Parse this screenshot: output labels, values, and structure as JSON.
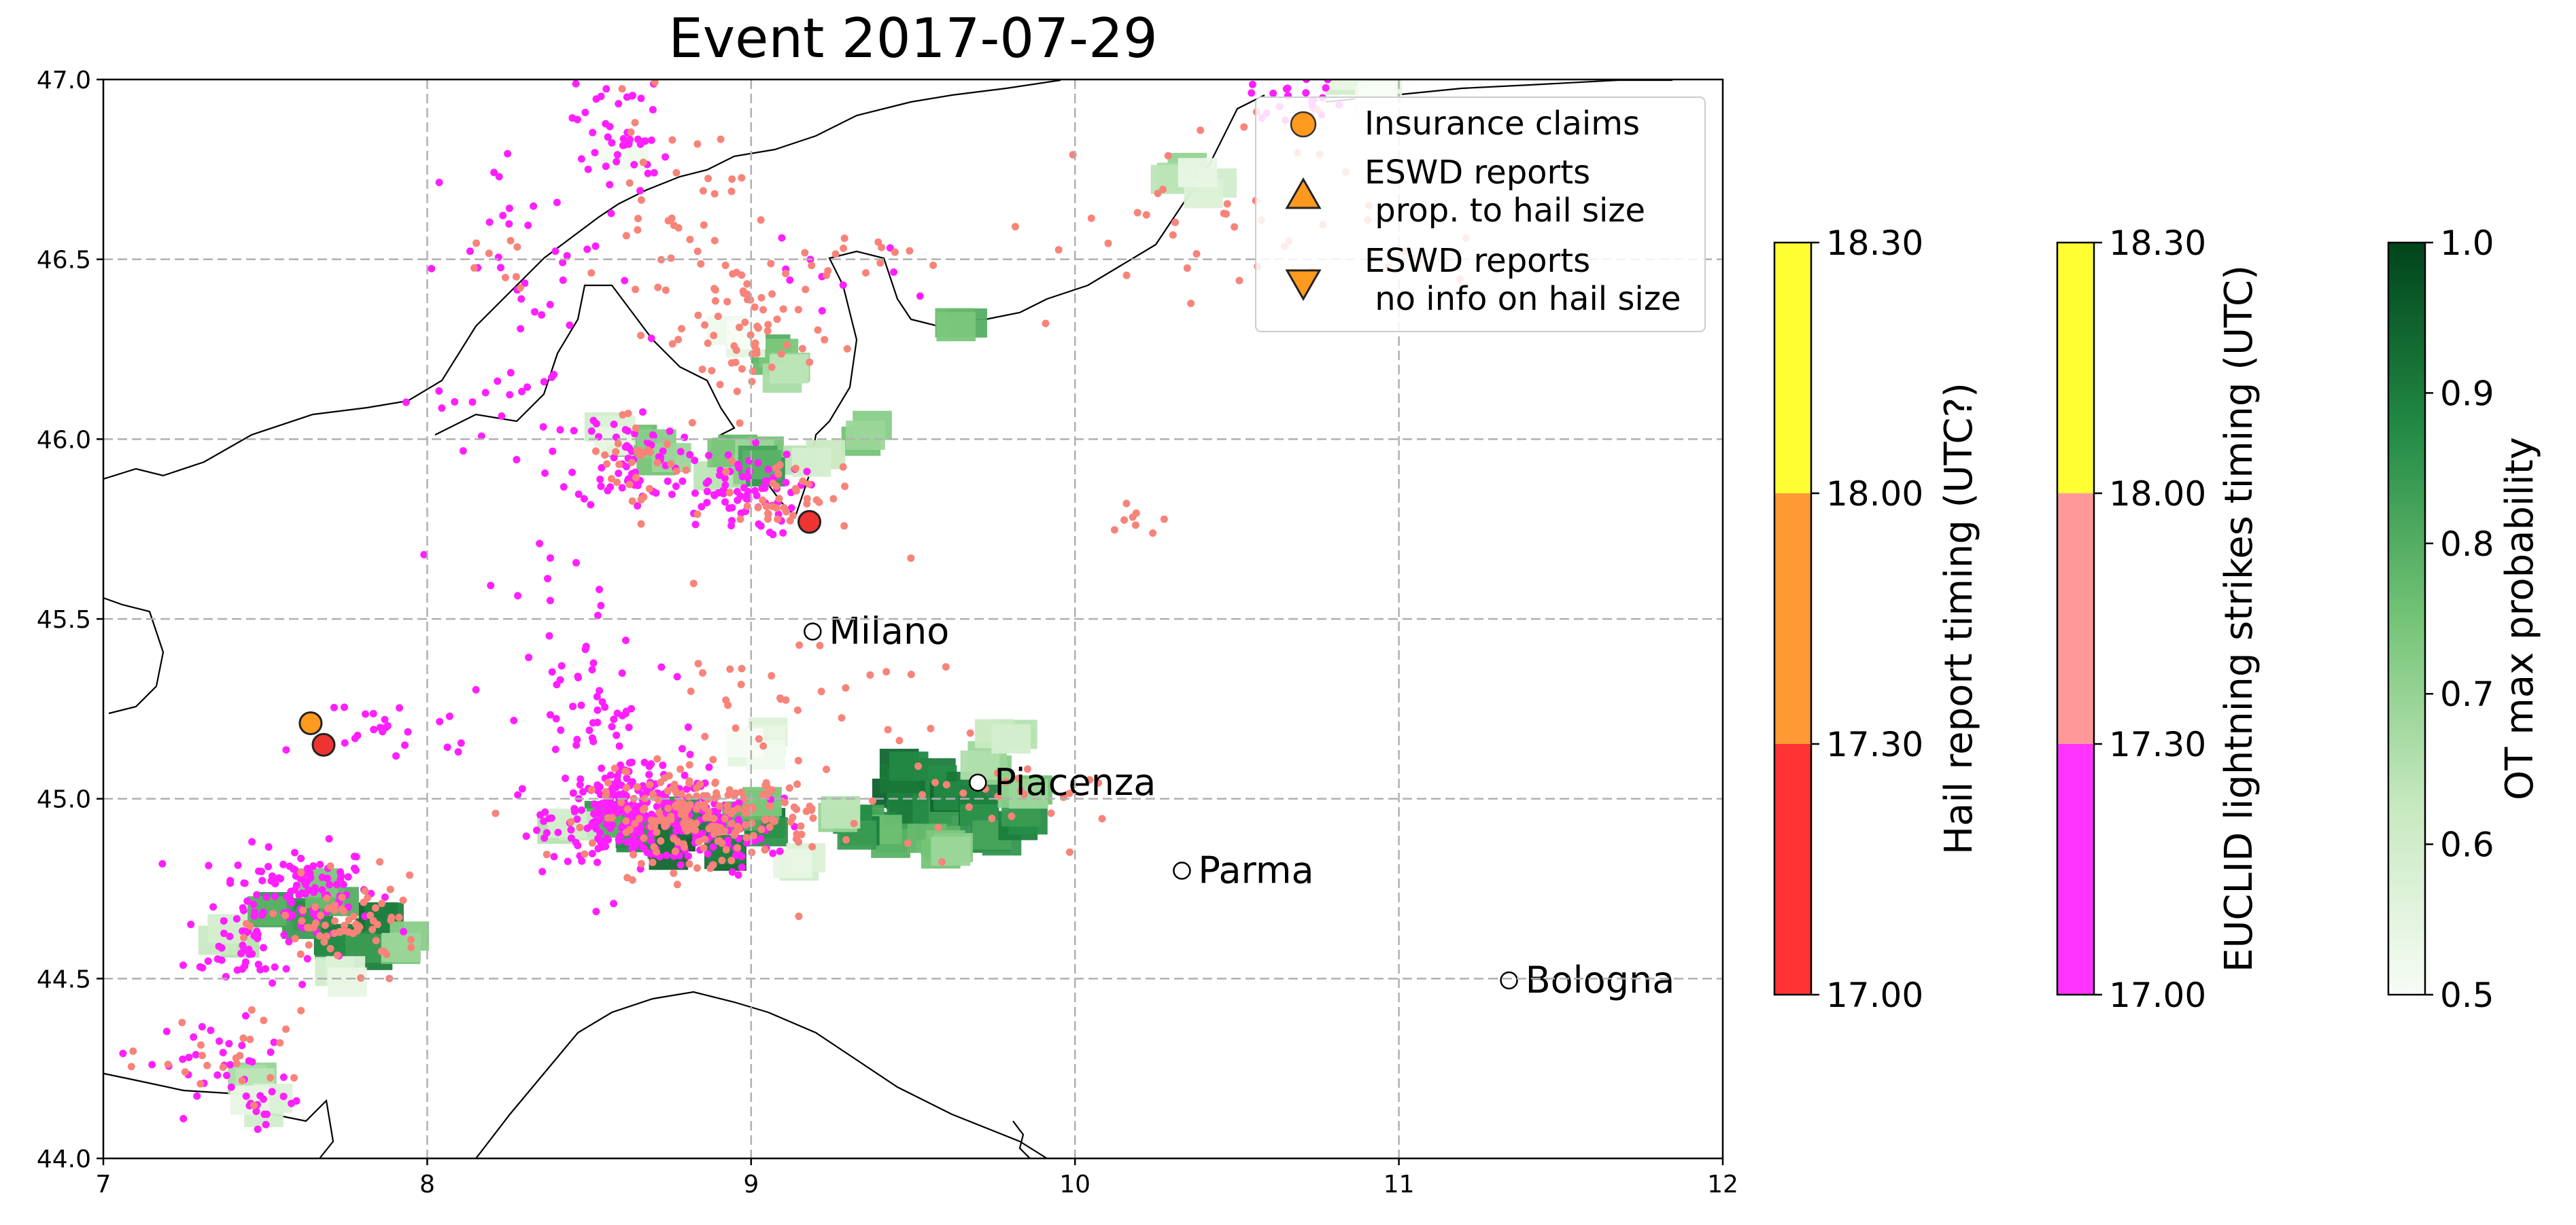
{
  "chart_data": {
    "type": "scatter",
    "title": "Event 2017-07-29",
    "xlim": [
      7,
      12
    ],
    "ylim": [
      44,
      47
    ],
    "xticks": [
      "7",
      "8",
      "9",
      "10",
      "11",
      "12"
    ],
    "yticks": [
      "44.0",
      "44.5",
      "45.0",
      "45.5",
      "46.0",
      "46.5",
      "47.0"
    ],
    "grid": true,
    "legend": {
      "placement": "top-right",
      "entries": [
        {
          "label": "Insurance claims",
          "marker": "circle"
        },
        {
          "label": "ESWD reports\n prop. to hail size",
          "marker": "triangle-up"
        },
        {
          "label": "ESWD reports\n no info on hail size",
          "marker": "triangle-down"
        }
      ]
    },
    "cities": [
      {
        "name": "Milano",
        "lon": 9.19,
        "lat": 45.465
      },
      {
        "name": "Piacenza",
        "lon": 9.7,
        "lat": 45.045
      },
      {
        "name": "Parma",
        "lon": 10.33,
        "lat": 44.8
      },
      {
        "name": "Bologna",
        "lon": 11.34,
        "lat": 44.495
      }
    ],
    "hail_reports": [
      {
        "lon": 7.64,
        "lat": 45.21,
        "time_class": "17.30-18.00"
      },
      {
        "lon": 7.68,
        "lat": 45.15,
        "time_class": "17.00-17.30"
      },
      {
        "lon": 9.18,
        "lat": 45.77,
        "time_class": "17.00-17.30"
      }
    ],
    "ot_cells": [
      [
        9.55,
        45.05,
        0.93
      ],
      [
        9.45,
        45.0,
        0.95
      ],
      [
        9.5,
        44.95,
        0.96
      ],
      [
        9.58,
        44.98,
        0.9
      ],
      [
        9.62,
        45.02,
        0.94
      ],
      [
        9.35,
        44.95,
        0.88
      ],
      [
        9.4,
        44.9,
        0.82
      ],
      [
        9.3,
        44.93,
        0.9
      ],
      [
        9.25,
        44.98,
        0.7
      ],
      [
        9.7,
        44.98,
        0.92
      ],
      [
        9.75,
        44.92,
        0.88
      ],
      [
        9.82,
        44.95,
        0.9
      ],
      [
        9.85,
        45.02,
        0.75
      ],
      [
        9.72,
        45.1,
        0.72
      ],
      [
        9.78,
        45.18,
        0.65
      ],
      [
        9.55,
        44.88,
        0.8
      ],
      [
        9.6,
        44.85,
        0.75
      ],
      [
        9.48,
        45.08,
        0.94
      ],
      [
        9.05,
        44.92,
        0.92
      ],
      [
        9.0,
        44.97,
        0.8
      ],
      [
        8.75,
        44.88,
        0.97
      ],
      [
        8.62,
        44.9,
        0.9
      ],
      [
        8.9,
        44.87,
        0.95
      ],
      [
        8.55,
        44.95,
        0.85
      ],
      [
        8.42,
        44.92,
        0.65
      ],
      [
        8.8,
        44.95,
        0.92
      ],
      [
        9.15,
        44.85,
        0.6
      ],
      [
        9.02,
        45.18,
        0.6
      ],
      [
        9.0,
        45.14,
        0.55
      ],
      [
        7.85,
        44.65,
        0.95
      ],
      [
        7.72,
        44.6,
        0.93
      ],
      [
        7.62,
        44.68,
        0.9
      ],
      [
        7.8,
        44.6,
        0.9
      ],
      [
        7.5,
        44.7,
        0.85
      ],
      [
        7.9,
        44.6,
        0.75
      ],
      [
        7.38,
        44.62,
        0.65
      ],
      [
        7.68,
        44.75,
        0.8
      ],
      [
        7.72,
        44.5,
        0.6
      ],
      [
        7.45,
        44.21,
        0.7
      ],
      [
        7.48,
        44.16,
        0.6
      ],
      [
        8.62,
        45.98,
        0.8
      ],
      [
        8.72,
        45.97,
        0.75
      ],
      [
        8.55,
        46.02,
        0.6
      ],
      [
        8.9,
        45.93,
        0.7
      ],
      [
        8.95,
        45.98,
        0.8
      ],
      [
        9.02,
        45.95,
        0.75
      ],
      [
        9.05,
        46.25,
        0.8
      ],
      [
        9.1,
        46.2,
        0.7
      ],
      [
        8.95,
        46.28,
        0.55
      ],
      [
        9.35,
        46.02,
        0.75
      ],
      [
        9.62,
        46.32,
        0.8
      ],
      [
        10.32,
        46.75,
        0.7
      ],
      [
        10.4,
        46.72,
        0.6
      ],
      [
        10.8,
        47.0,
        0.6
      ],
      [
        10.9,
        46.97,
        0.55
      ],
      [
        8.58,
        46.8,
        0.55
      ],
      [
        9.18,
        45.97,
        0.65
      ],
      [
        9.0,
        45.92,
        0.85
      ]
    ],
    "lightning_clusters": [
      {
        "lon": 7.6,
        "lat": 44.75,
        "n": 110,
        "sx": 0.12,
        "sy": 0.06
      },
      {
        "lon": 7.45,
        "lat": 44.58,
        "n": 45,
        "sx": 0.1,
        "sy": 0.06
      },
      {
        "lon": 7.35,
        "lat": 44.28,
        "n": 28,
        "sx": 0.1,
        "sy": 0.05
      },
      {
        "lon": 7.5,
        "lat": 44.16,
        "n": 18,
        "sx": 0.06,
        "sy": 0.03
      },
      {
        "lon": 8.65,
        "lat": 44.95,
        "n": 260,
        "sx": 0.13,
        "sy": 0.06
      },
      {
        "lon": 8.9,
        "lat": 44.9,
        "n": 60,
        "sx": 0.1,
        "sy": 0.05
      },
      {
        "lon": 8.55,
        "lat": 45.2,
        "n": 70,
        "sx": 0.15,
        "sy": 0.18
      },
      {
        "lon": 8.62,
        "lat": 45.95,
        "n": 60,
        "sx": 0.08,
        "sy": 0.07
      },
      {
        "lon": 8.95,
        "lat": 45.85,
        "n": 80,
        "sx": 0.1,
        "sy": 0.06
      },
      {
        "lon": 8.6,
        "lat": 46.85,
        "n": 45,
        "sx": 0.07,
        "sy": 0.1
      },
      {
        "lon": 8.35,
        "lat": 46.45,
        "n": 35,
        "sx": 0.15,
        "sy": 0.18
      },
      {
        "lon": 7.9,
        "lat": 45.2,
        "n": 25,
        "sx": 0.15,
        "sy": 0.05
      },
      {
        "lon": 8.2,
        "lat": 46.1,
        "n": 20,
        "sx": 0.15,
        "sy": 0.06
      },
      {
        "lon": 10.7,
        "lat": 46.95,
        "n": 22,
        "sx": 0.08,
        "sy": 0.03
      },
      {
        "lon": 9.2,
        "lat": 46.45,
        "n": 10,
        "sx": 0.15,
        "sy": 0.05
      },
      {
        "lon": 8.35,
        "lat": 45.6,
        "n": 12,
        "sx": 0.12,
        "sy": 0.2
      }
    ],
    "lightning_clusters_late": [
      {
        "lon": 8.85,
        "lat": 44.95,
        "n": 200,
        "sx": 0.17,
        "sy": 0.06
      },
      {
        "lon": 9.15,
        "lat": 45.15,
        "n": 50,
        "sx": 0.3,
        "sy": 0.2
      },
      {
        "lon": 7.75,
        "lat": 44.65,
        "n": 70,
        "sx": 0.12,
        "sy": 0.06
      },
      {
        "lon": 9.0,
        "lat": 46.3,
        "n": 60,
        "sx": 0.1,
        "sy": 0.12
      },
      {
        "lon": 8.75,
        "lat": 46.6,
        "n": 40,
        "sx": 0.1,
        "sy": 0.15
      },
      {
        "lon": 9.1,
        "lat": 45.85,
        "n": 40,
        "sx": 0.1,
        "sy": 0.05
      },
      {
        "lon": 8.65,
        "lat": 45.95,
        "n": 30,
        "sx": 0.08,
        "sy": 0.08
      },
      {
        "lon": 9.65,
        "lat": 44.98,
        "n": 25,
        "sx": 0.2,
        "sy": 0.06
      },
      {
        "lon": 10.35,
        "lat": 46.6,
        "n": 40,
        "sx": 0.3,
        "sy": 0.15
      },
      {
        "lon": 9.3,
        "lat": 46.5,
        "n": 15,
        "sx": 0.1,
        "sy": 0.04
      },
      {
        "lon": 7.45,
        "lat": 44.25,
        "n": 18,
        "sx": 0.08,
        "sy": 0.08
      },
      {
        "lon": 7.2,
        "lat": 44.3,
        "n": 6,
        "sx": 0.1,
        "sy": 0.05
      },
      {
        "lon": 10.15,
        "lat": 45.78,
        "n": 8,
        "sx": 0.06,
        "sy": 0.03
      },
      {
        "lon": 8.2,
        "lat": 46.45,
        "n": 8,
        "sx": 0.1,
        "sy": 0.06
      },
      {
        "lon": 11.05,
        "lat": 46.55,
        "n": 4,
        "sx": 0.05,
        "sy": 0.05
      }
    ],
    "colorbars": [
      {
        "label": "Hail report timing (UTC?)",
        "ticks": [
          "17.00",
          "17.30",
          "18.00",
          "18.30"
        ],
        "colors": [
          "#ff3333",
          "#ff9933",
          "#ffff33"
        ]
      },
      {
        "label": "EUCLID lightning strikes timing (UTC)",
        "ticks": [
          "17.00",
          "17.30",
          "18.00",
          "18.30"
        ],
        "colors": [
          "#ff33ff",
          "#ff9999",
          "#ffff33"
        ]
      },
      {
        "label": "OT max probability",
        "ticks": [
          "0.5",
          "0.6",
          "0.7",
          "0.8",
          "0.9",
          "1.0"
        ],
        "range": [
          0.5,
          1.0
        ],
        "colors": [
          "#f7fcf5",
          "#c7e9c0",
          "#74c476",
          "#238b45",
          "#00441b"
        ]
      }
    ]
  }
}
